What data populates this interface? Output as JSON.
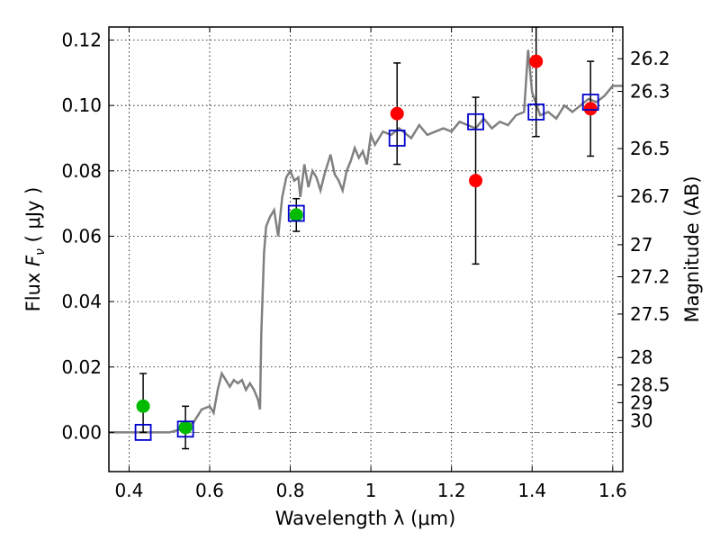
{
  "chart_data": {
    "type": "scatter",
    "xlabel": "Wavelength  λ (μm)",
    "ylabel": "Flux  F_ν  ( μJy )",
    "ylabel_parts": {
      "pre": "Flux  ",
      "var": "F",
      "sub": "ν",
      "post": "  ( μJy )"
    },
    "y2label": "Magnitude (AB)",
    "xlim": [
      0.35,
      1.625
    ],
    "ylim": [
      -0.012,
      0.124
    ],
    "grid": true,
    "x_ticks": [
      {
        "value": 0.4,
        "label": "0.4"
      },
      {
        "value": 0.6,
        "label": "0.6"
      },
      {
        "value": 0.8,
        "label": "0.8"
      },
      {
        "value": 1.0,
        "label": "1"
      },
      {
        "value": 1.2,
        "label": "1.2"
      },
      {
        "value": 1.4,
        "label": "1.4"
      },
      {
        "value": 1.6,
        "label": "1.6"
      }
    ],
    "y_ticks": [
      {
        "value": 0.0,
        "label": "0.00"
      },
      {
        "value": 0.02,
        "label": "0.02"
      },
      {
        "value": 0.04,
        "label": "0.04"
      },
      {
        "value": 0.06,
        "label": "0.06"
      },
      {
        "value": 0.08,
        "label": "0.08"
      },
      {
        "value": 0.1,
        "label": "0.10"
      },
      {
        "value": 0.12,
        "label": "0.12"
      }
    ],
    "magnitude_ticks": [
      {
        "flux": 0.1143,
        "label": "26.2"
      },
      {
        "flux": 0.1043,
        "label": "26.3"
      },
      {
        "flux": 0.0868,
        "label": "26.5"
      },
      {
        "flux": 0.0722,
        "label": "26.7"
      },
      {
        "flux": 0.0574,
        "label": "27"
      },
      {
        "flux": 0.0476,
        "label": "27.2"
      },
      {
        "flux": 0.0362,
        "label": "27.5"
      },
      {
        "flux": 0.0229,
        "label": "28"
      },
      {
        "flux": 0.0145,
        "label": "28.5"
      },
      {
        "flux": 0.0091,
        "label": "29"
      },
      {
        "flux": 0.0036,
        "label": "30"
      }
    ],
    "model_spectrum": {
      "color": "#808080",
      "points": [
        [
          0.35,
          0.0
        ],
        [
          0.4,
          0.0
        ],
        [
          0.45,
          0.0
        ],
        [
          0.5,
          0.0
        ],
        [
          0.53,
          0.001
        ],
        [
          0.56,
          0.003
        ],
        [
          0.58,
          0.007
        ],
        [
          0.6,
          0.008
        ],
        [
          0.61,
          0.006
        ],
        [
          0.62,
          0.013
        ],
        [
          0.63,
          0.018
        ],
        [
          0.64,
          0.016
        ],
        [
          0.65,
          0.014
        ],
        [
          0.66,
          0.016
        ],
        [
          0.67,
          0.015
        ],
        [
          0.68,
          0.016
        ],
        [
          0.69,
          0.013
        ],
        [
          0.7,
          0.015
        ],
        [
          0.71,
          0.013
        ],
        [
          0.72,
          0.01
        ],
        [
          0.725,
          0.007
        ],
        [
          0.728,
          0.03
        ],
        [
          0.735,
          0.055
        ],
        [
          0.74,
          0.063
        ],
        [
          0.75,
          0.066
        ],
        [
          0.76,
          0.068
        ],
        [
          0.77,
          0.06
        ],
        [
          0.78,
          0.072
        ],
        [
          0.79,
          0.078
        ],
        [
          0.8,
          0.08
        ],
        [
          0.81,
          0.077
        ],
        [
          0.82,
          0.078
        ],
        [
          0.825,
          0.072
        ],
        [
          0.835,
          0.082
        ],
        [
          0.845,
          0.075
        ],
        [
          0.855,
          0.08
        ],
        [
          0.865,
          0.078
        ],
        [
          0.875,
          0.074
        ],
        [
          0.885,
          0.079
        ],
        [
          0.9,
          0.085
        ],
        [
          0.91,
          0.079
        ],
        [
          0.92,
          0.077
        ],
        [
          0.93,
          0.074
        ],
        [
          0.94,
          0.08
        ],
        [
          0.95,
          0.083
        ],
        [
          0.96,
          0.087
        ],
        [
          0.97,
          0.084
        ],
        [
          0.98,
          0.086
        ],
        [
          0.99,
          0.082
        ],
        [
          1.0,
          0.091
        ],
        [
          1.01,
          0.088
        ],
        [
          1.02,
          0.09
        ],
        [
          1.03,
          0.092
        ],
        [
          1.05,
          0.091
        ],
        [
          1.07,
          0.093
        ],
        [
          1.08,
          0.092
        ],
        [
          1.1,
          0.09
        ],
        [
          1.12,
          0.094
        ],
        [
          1.14,
          0.091
        ],
        [
          1.16,
          0.092
        ],
        [
          1.18,
          0.093
        ],
        [
          1.2,
          0.092
        ],
        [
          1.22,
          0.095
        ],
        [
          1.24,
          0.094
        ],
        [
          1.26,
          0.093
        ],
        [
          1.28,
          0.096
        ],
        [
          1.3,
          0.093
        ],
        [
          1.32,
          0.095
        ],
        [
          1.34,
          0.094
        ],
        [
          1.36,
          0.097
        ],
        [
          1.38,
          0.098
        ],
        [
          1.39,
          0.117
        ],
        [
          1.4,
          0.104
        ],
        [
          1.42,
          0.097
        ],
        [
          1.44,
          0.098
        ],
        [
          1.46,
          0.096
        ],
        [
          1.48,
          0.1
        ],
        [
          1.5,
          0.098
        ],
        [
          1.52,
          0.1
        ],
        [
          1.54,
          0.102
        ],
        [
          1.56,
          0.101
        ],
        [
          1.58,
          0.103
        ],
        [
          1.6,
          0.106
        ],
        [
          1.625,
          0.106
        ]
      ]
    },
    "series": [
      {
        "marker": "circle",
        "color": "#00bb00",
        "points": [
          {
            "x": 0.435,
            "y": 0.008,
            "err_low": 0.0,
            "err_high": 0.018
          },
          {
            "x": 0.54,
            "y": 0.0015,
            "err_low": -0.005,
            "err_high": 0.008
          },
          {
            "x": 0.815,
            "y": 0.0665,
            "err_low": 0.0615,
            "err_high": 0.0715
          }
        ]
      },
      {
        "marker": "circle",
        "color": "#ff0000",
        "points": [
          {
            "x": 1.065,
            "y": 0.0975,
            "err_low": 0.082,
            "err_high": 0.113
          },
          {
            "x": 1.26,
            "y": 0.077,
            "err_low": 0.0515,
            "err_high": 0.1025
          },
          {
            "x": 1.41,
            "y": 0.1135,
            "err_low": 0.0905,
            "err_high": 0.124
          },
          {
            "x": 1.545,
            "y": 0.099,
            "err_low": 0.0845,
            "err_high": 0.1135
          }
        ]
      },
      {
        "marker": "square-open",
        "color": "#0000cc",
        "points": [
          {
            "x": 0.435,
            "y": 0.0
          },
          {
            "x": 0.54,
            "y": 0.001
          },
          {
            "x": 0.815,
            "y": 0.067
          },
          {
            "x": 1.065,
            "y": 0.09
          },
          {
            "x": 1.26,
            "y": 0.095
          },
          {
            "x": 1.41,
            "y": 0.098
          },
          {
            "x": 1.545,
            "y": 0.101
          }
        ]
      }
    ]
  }
}
